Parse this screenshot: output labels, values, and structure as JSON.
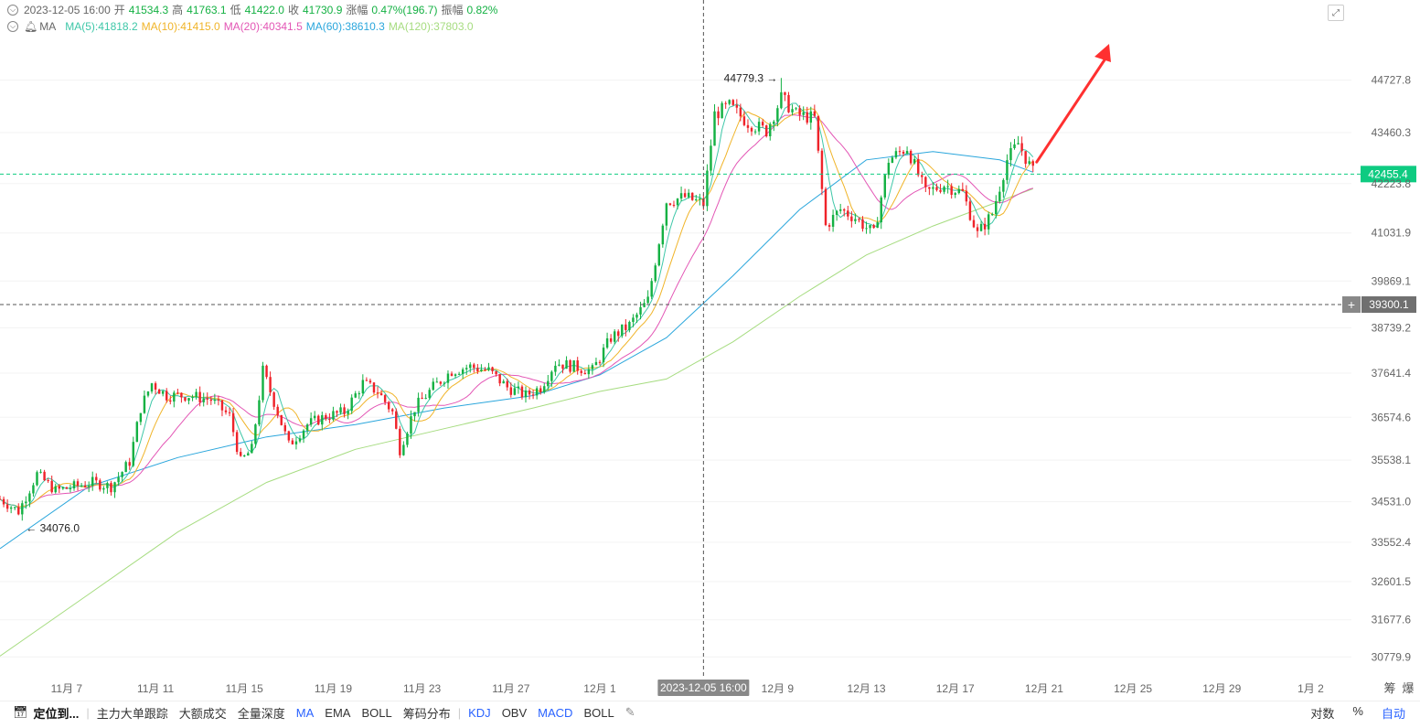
{
  "header": {
    "datetime": "2023-12-05 16:00",
    "open_label": "开",
    "open": "41534.3",
    "high_label": "高",
    "high": "41763.1",
    "low_label": "低",
    "low": "41422.0",
    "close_label": "收",
    "close": "41730.9",
    "change_label": "涨幅",
    "change": "0.47%(196.7)",
    "amplitude_label": "振幅",
    "amplitude": "0.82%",
    "ma_group": "MA",
    "ma5": "MA(5):41818.2",
    "ma10": "MA(10):41415.0",
    "ma20": "MA(20):40341.5",
    "ma60": "MA(60):38610.3",
    "ma120": "MA(120):37803.0"
  },
  "colors": {
    "up": "#14b143",
    "down": "#ef232a",
    "ma5": "#3ec7a8",
    "ma10": "#f0b429",
    "ma20": "#e356b5",
    "ma60": "#2aa6dc",
    "ma120": "#a6dc80",
    "axis_text": "#666666",
    "crosshair": "#555555",
    "price_tag_green": "#0ecb81",
    "price_tag_gray": "#888888",
    "arrow": "#ff3030"
  },
  "chart_data": {
    "type": "candlestick",
    "interval": "4h",
    "yticks": [
      "44727.8",
      "43460.3",
      "42223.8",
      "41031.9",
      "39869.1",
      "38739.2",
      "37641.4",
      "36574.6",
      "35538.1",
      "34531.0",
      "33552.4",
      "32601.5",
      "31677.6",
      "30779.9"
    ],
    "xticks": [
      "11月 7",
      "11月 11",
      "11月 15",
      "11月 19",
      "11月 23",
      "11月 27",
      "12月 1",
      "12月 9",
      "12月 13",
      "12月 17",
      "12月 21",
      "12月 25",
      "12月 29",
      "1月 2"
    ],
    "x_range": [
      "2023-11-04 00:00",
      "2024-01-03 20:00"
    ],
    "y_range": [
      30300,
      45780
    ],
    "current_price": "42455.4",
    "crosshair_price": "39300.1",
    "crosshair_time": "2023-12-05 16:00",
    "max_label": "44779.3",
    "min_label": "34076.0",
    "annotation": "red arrow pointing upward from last candle",
    "ohlc_note": "4h candles 2023-11-04 to 2023-12-20, close path below is the daily-ish trajectory",
    "close_anchors": [
      [
        "2023-11-04 00:00",
        34600
      ],
      [
        "2023-11-04 20:00",
        34300
      ],
      [
        "2023-11-05 16:00",
        35200
      ],
      [
        "2023-11-06 12:00",
        34800
      ],
      [
        "2023-11-07 08:00",
        34900
      ],
      [
        "2023-11-08 04:00",
        35000
      ],
      [
        "2023-11-09 00:00",
        34900
      ],
      [
        "2023-11-09 20:00",
        35500
      ],
      [
        "2023-11-10 08:00",
        36800
      ],
      [
        "2023-11-10 20:00",
        37400
      ],
      [
        "2023-11-11 12:00",
        37100
      ],
      [
        "2023-11-12 12:00",
        37100
      ],
      [
        "2023-11-13 12:00",
        37000
      ],
      [
        "2023-11-14 08:00",
        36600
      ],
      [
        "2023-11-14 20:00",
        35500
      ],
      [
        "2023-11-15 08:00",
        35800
      ],
      [
        "2023-11-15 20:00",
        37700
      ],
      [
        "2023-11-16 12:00",
        36700
      ],
      [
        "2023-11-17 00:00",
        35900
      ],
      [
        "2023-11-17 20:00",
        36400
      ],
      [
        "2023-11-18 16:00",
        36600
      ],
      [
        "2023-11-19 12:00",
        36700
      ],
      [
        "2023-11-20 08:00",
        37400
      ],
      [
        "2023-11-21 00:00",
        37200
      ],
      [
        "2023-11-21 16:00",
        36700
      ],
      [
        "2023-11-22 00:00",
        35800
      ],
      [
        "2023-11-22 16:00",
        36800
      ],
      [
        "2023-11-23 12:00",
        37300
      ],
      [
        "2023-11-24 08:00",
        37700
      ],
      [
        "2023-11-25 04:00",
        37800
      ],
      [
        "2023-11-26 00:00",
        37700
      ],
      [
        "2023-11-26 20:00",
        37300
      ],
      [
        "2023-11-27 16:00",
        37100
      ],
      [
        "2023-11-28 08:00",
        37300
      ],
      [
        "2023-11-29 00:00",
        37900
      ],
      [
        "2023-11-29 20:00",
        37800
      ],
      [
        "2023-11-30 16:00",
        37700
      ],
      [
        "2023-12-01 12:00",
        38500
      ],
      [
        "2023-12-02 08:00",
        38800
      ],
      [
        "2023-12-03 04:00",
        39400
      ],
      [
        "2023-12-04 00:00",
        41800
      ],
      [
        "2023-12-04 20:00",
        41900
      ],
      [
        "2023-12-05 16:00",
        41730
      ],
      [
        "2023-12-06 04:00",
        43900
      ],
      [
        "2023-12-06 20:00",
        44100
      ],
      [
        "2023-12-07 16:00",
        43700
      ],
      [
        "2023-12-08 12:00",
        43500
      ],
      [
        "2023-12-09 04:00",
        44300
      ],
      [
        "2023-12-09 20:00",
        43900
      ],
      [
        "2023-12-10 16:00",
        43800
      ],
      [
        "2023-12-11 04:00",
        41200
      ],
      [
        "2023-12-11 20:00",
        41600
      ],
      [
        "2023-12-12 12:00",
        41400
      ],
      [
        "2023-12-13 08:00",
        41000
      ],
      [
        "2023-12-14 00:00",
        42800
      ],
      [
        "2023-12-14 20:00",
        43100
      ],
      [
        "2023-12-15 16:00",
        42000
      ],
      [
        "2023-12-16 12:00",
        42200
      ],
      [
        "2023-12-17 08:00",
        42000
      ],
      [
        "2023-12-18 00:00",
        41000
      ],
      [
        "2023-12-18 16:00",
        41500
      ],
      [
        "2023-12-19 08:00",
        42800
      ],
      [
        "2023-12-19 20:00",
        43200
      ],
      [
        "2023-12-20 12:00",
        42500
      ]
    ],
    "ma60_anchors": [
      [
        "2023-11-04 00:00",
        33400
      ],
      [
        "2023-11-08 00:00",
        34900
      ],
      [
        "2023-11-12 00:00",
        35600
      ],
      [
        "2023-11-16 00:00",
        36100
      ],
      [
        "2023-11-20 00:00",
        36400
      ],
      [
        "2023-11-24 00:00",
        36800
      ],
      [
        "2023-11-28 00:00",
        37100
      ],
      [
        "2023-12-01 00:00",
        37600
      ],
      [
        "2023-12-04 00:00",
        38500
      ],
      [
        "2023-12-07 00:00",
        40000
      ],
      [
        "2023-12-10 00:00",
        41600
      ],
      [
        "2023-12-13 00:00",
        42800
      ],
      [
        "2023-12-16 00:00",
        43000
      ],
      [
        "2023-12-19 00:00",
        42800
      ],
      [
        "2023-12-20 12:00",
        42500
      ]
    ],
    "ma120_anchors": [
      [
        "2023-11-04 00:00",
        30800
      ],
      [
        "2023-11-08 00:00",
        32300
      ],
      [
        "2023-11-12 00:00",
        33800
      ],
      [
        "2023-11-16 00:00",
        35000
      ],
      [
        "2023-11-20 00:00",
        35800
      ],
      [
        "2023-11-24 00:00",
        36300
      ],
      [
        "2023-11-28 00:00",
        36800
      ],
      [
        "2023-12-01 00:00",
        37200
      ],
      [
        "2023-12-04 00:00",
        37500
      ],
      [
        "2023-12-07 00:00",
        38400
      ],
      [
        "2023-12-10 00:00",
        39500
      ],
      [
        "2023-12-13 00:00",
        40500
      ],
      [
        "2023-12-16 00:00",
        41200
      ],
      [
        "2023-12-19 00:00",
        41800
      ],
      [
        "2023-12-20 12:00",
        42100
      ]
    ]
  },
  "toolbar": {
    "locate": "定位到...",
    "items": [
      "主力大单跟踪",
      "大额成交",
      "全量深度",
      "MA",
      "EMA",
      "BOLL",
      "筹码分布"
    ],
    "indicators": [
      "KDJ",
      "OBV",
      "MACD",
      "BOLL"
    ],
    "right": [
      "对数",
      "%",
      "自动"
    ],
    "corner": [
      "筹",
      "爆"
    ]
  }
}
